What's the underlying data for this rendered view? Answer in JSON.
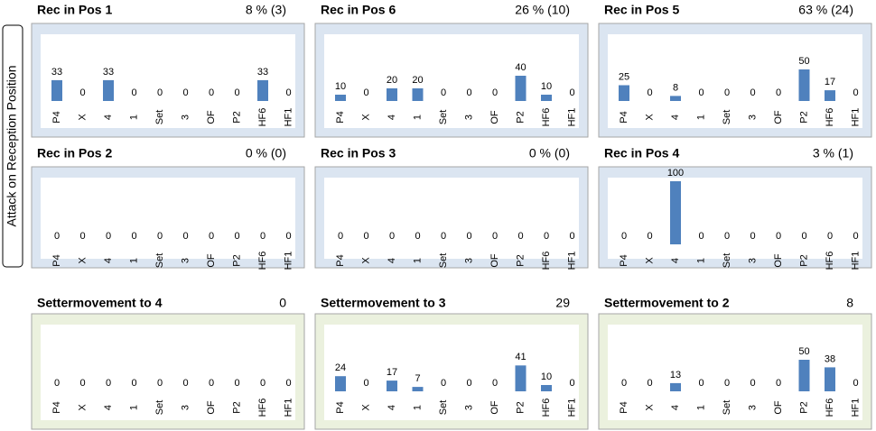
{
  "side_label": "Attack on Reception Position",
  "chart_data": [
    {
      "type": "bar",
      "title": "Rec in Pos 1",
      "stat": "8 % (3)",
      "categories": [
        "P4",
        "X",
        "4",
        "1",
        "Set",
        "3",
        "OF",
        "P2",
        "HF6",
        "HF1"
      ],
      "values": [
        33,
        0,
        33,
        0,
        0,
        0,
        0,
        0,
        33,
        0
      ],
      "color": "#4f81bd",
      "background": "#dbe5f1",
      "ylim": [
        0,
        100
      ]
    },
    {
      "type": "bar",
      "title": "Rec in Pos 6",
      "stat": "26 % (10)",
      "categories": [
        "P4",
        "X",
        "4",
        "1",
        "Set",
        "3",
        "OF",
        "P2",
        "HF6",
        "HF1"
      ],
      "values": [
        10,
        0,
        20,
        20,
        0,
        0,
        0,
        40,
        10,
        0
      ],
      "color": "#4f81bd",
      "background": "#dbe5f1",
      "ylim": [
        0,
        100
      ]
    },
    {
      "type": "bar",
      "title": "Rec in Pos 5",
      "stat": "63 % (24)",
      "categories": [
        "P4",
        "X",
        "4",
        "1",
        "Set",
        "3",
        "OF",
        "P2",
        "HF6",
        "HF1"
      ],
      "values": [
        25,
        0,
        8,
        0,
        0,
        0,
        0,
        50,
        17,
        0
      ],
      "color": "#4f81bd",
      "background": "#dbe5f1",
      "ylim": [
        0,
        100
      ]
    },
    {
      "type": "bar",
      "title": "Rec in Pos 2",
      "stat": "0 % (0)",
      "categories": [
        "P4",
        "X",
        "4",
        "1",
        "Set",
        "3",
        "OF",
        "P2",
        "HF6",
        "HF1"
      ],
      "values": [
        0,
        0,
        0,
        0,
        0,
        0,
        0,
        0,
        0,
        0
      ],
      "color": "#4f81bd",
      "background": "#dbe5f1",
      "ylim": [
        0,
        100
      ]
    },
    {
      "type": "bar",
      "title": "Rec in Pos 3",
      "stat": "0 % (0)",
      "categories": [
        "P4",
        "X",
        "4",
        "1",
        "Set",
        "3",
        "OF",
        "P2",
        "HF6",
        "HF1"
      ],
      "values": [
        0,
        0,
        0,
        0,
        0,
        0,
        0,
        0,
        0,
        0
      ],
      "color": "#4f81bd",
      "background": "#dbe5f1",
      "ylim": [
        0,
        100
      ]
    },
    {
      "type": "bar",
      "title": "Rec in Pos 4",
      "stat": "3 % (1)",
      "categories": [
        "P4",
        "X",
        "4",
        "1",
        "Set",
        "3",
        "OF",
        "P2",
        "HF6",
        "HF1"
      ],
      "values": [
        0,
        0,
        100,
        0,
        0,
        0,
        0,
        0,
        0,
        0
      ],
      "color": "#4f81bd",
      "background": "#dbe5f1",
      "ylim": [
        0,
        100
      ]
    },
    {
      "type": "bar",
      "title": "Settermovement to 4",
      "stat": 0,
      "categories": [
        "P4",
        "X",
        "4",
        "1",
        "Set",
        "3",
        "OF",
        "P2",
        "HF6",
        "HF1"
      ],
      "values": [
        0,
        0,
        0,
        0,
        0,
        0,
        0,
        0,
        0,
        0
      ],
      "color": "#4f81bd",
      "background": "#ebf1de",
      "ylim": [
        0,
        100
      ]
    },
    {
      "type": "bar",
      "title": "Settermovement to 3",
      "stat": 29,
      "categories": [
        "P4",
        "X",
        "4",
        "1",
        "Set",
        "3",
        "OF",
        "P2",
        "HF6",
        "HF1"
      ],
      "values": [
        24,
        0,
        17,
        7,
        0,
        0,
        0,
        41,
        10,
        0
      ],
      "color": "#4f81bd",
      "background": "#ebf1de",
      "ylim": [
        0,
        100
      ]
    },
    {
      "type": "bar",
      "title": "Settermovement to 2",
      "stat": 8,
      "categories": [
        "P4",
        "X",
        "4",
        "1",
        "Set",
        "3",
        "OF",
        "P2",
        "HF6",
        "HF1"
      ],
      "values": [
        0,
        0,
        13,
        0,
        0,
        0,
        0,
        50,
        38,
        0
      ],
      "color": "#4f81bd",
      "background": "#ebf1de",
      "ylim": [
        0,
        100
      ]
    }
  ]
}
